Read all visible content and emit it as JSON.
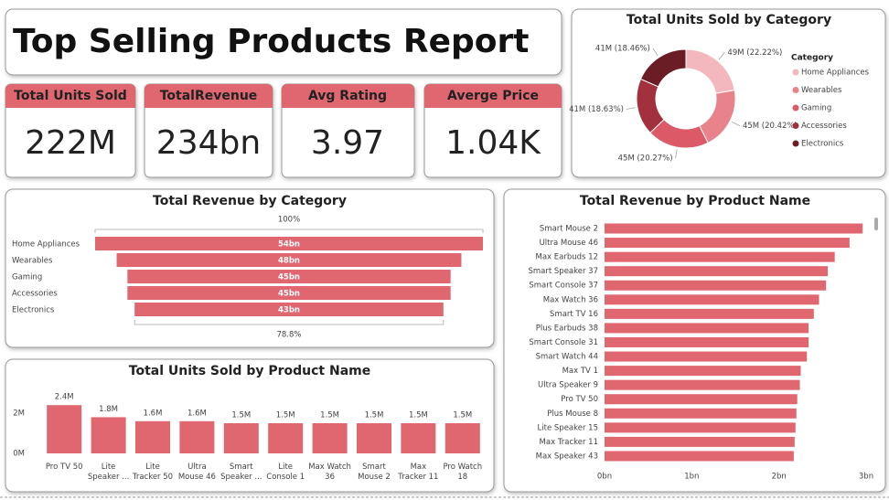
{
  "header": {
    "title": "Top Selling Products Report"
  },
  "kpis": [
    {
      "label": "Total Units Sold",
      "value": "222M"
    },
    {
      "label": "TotalRevenue",
      "value": "234bn"
    },
    {
      "label": "Avg Rating",
      "value": "3.97"
    },
    {
      "label": "Averge Price",
      "value": "1.04K"
    }
  ],
  "chart_data": [
    {
      "type": "donut",
      "title": "Total Units Sold by Category",
      "legend_title": "Category",
      "categories": [
        "Home Appliances",
        "Wearables",
        "Gaming",
        "Accessories",
        "Electronics"
      ],
      "values": [
        22.22,
        20.42,
        20.27,
        18.63,
        18.46
      ],
      "value_labels": [
        "49M (22.22%)",
        "45M (20.42%)",
        "45M (20.27%)",
        "41M (18.63%)",
        "41M (18.46%)"
      ],
      "colors": [
        "#f2b8bd",
        "#e8828b",
        "#dc5a67",
        "#a3313d",
        "#6b1d25"
      ]
    },
    {
      "type": "funnel",
      "title": "Total Revenue by Category",
      "categories": [
        "Home Appliances",
        "Wearables",
        "Gaming",
        "Accessories",
        "Electronics"
      ],
      "values": [
        54,
        48,
        45,
        45,
        43
      ],
      "value_labels": [
        "54bn",
        "48bn",
        "45bn",
        "45bn",
        "43bn"
      ],
      "top_label": "100%",
      "bottom_label": "78.8%",
      "color": "#e06670"
    },
    {
      "type": "bar",
      "title": "Total Units Sold by Product Name",
      "categories": [
        "Pro TV 50",
        "Lite Speaker ...",
        "Lite Tracker 50",
        "Ultra Mouse 46",
        "Smart Speaker ...",
        "Lite Console 1",
        "Max Watch 36",
        "Smart Mouse 2",
        "Max Tracker 11",
        "Pro Watch 18"
      ],
      "values": [
        2.4,
        1.8,
        1.6,
        1.6,
        1.5,
        1.5,
        1.5,
        1.5,
        1.5,
        1.5
      ],
      "value_labels": [
        "2.4M",
        "1.8M",
        "1.6M",
        "1.6M",
        "1.5M",
        "1.5M",
        "1.5M",
        "1.5M",
        "1.5M",
        "1.5M"
      ],
      "ylim": [
        0,
        2.6
      ],
      "yticks": [
        {
          "value": 0,
          "label": "0M"
        },
        {
          "value": 2,
          "label": "2M"
        }
      ],
      "color": "#e06670"
    },
    {
      "type": "hbar",
      "title": "Total Revenue by Product Name",
      "categories": [
        "Smart Mouse 2",
        "Ultra Mouse 46",
        "Max Earbuds 12",
        "Smart Speaker 37",
        "Smart Console 37",
        "Max Watch 36",
        "Smart TV 16",
        "Plus Earbuds 38",
        "Smart Console 31",
        "Smart Watch 44",
        "Max TV 1",
        "Ultra Speaker 9",
        "Pro TV 50",
        "Plus Mouse 8",
        "Lite Speaker 15",
        "Max Tracker 11",
        "Max Speaker 43"
      ],
      "values": [
        2.96,
        2.81,
        2.64,
        2.56,
        2.54,
        2.46,
        2.4,
        2.34,
        2.34,
        2.32,
        2.25,
        2.24,
        2.21,
        2.2,
        2.19,
        2.18,
        2.17
      ],
      "xlim": [
        0,
        3
      ],
      "xticks": [
        {
          "value": 0,
          "label": "0bn"
        },
        {
          "value": 1,
          "label": "1bn"
        },
        {
          "value": 2,
          "label": "2bn"
        },
        {
          "value": 3,
          "label": "3bn"
        }
      ],
      "color": "#e06670"
    }
  ]
}
